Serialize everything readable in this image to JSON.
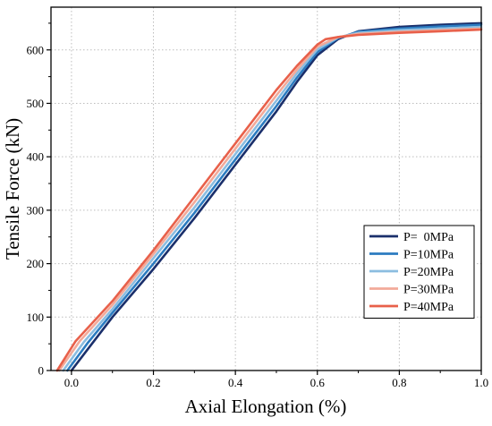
{
  "chart_data": {
    "type": "line",
    "title": "",
    "xlabel": "Axial Elongation (%)",
    "ylabel": "Tensile Force (kN)",
    "xlim": [
      -0.05,
      1.0
    ],
    "ylim": [
      0,
      680
    ],
    "x_ticks": [
      0.0,
      0.2,
      0.4,
      0.6,
      0.8,
      1.0
    ],
    "x_tick_labels": [
      "0.0",
      "0.2",
      "0.4",
      "0.6",
      "0.8",
      "1.0"
    ],
    "y_ticks": [
      0,
      100,
      200,
      300,
      400,
      500,
      600
    ],
    "y_tick_labels": [
      "0",
      "100",
      "200",
      "300",
      "400",
      "500",
      "600"
    ],
    "grid": true,
    "legend_position": "right",
    "series": [
      {
        "name": "P=  0MPa",
        "color": "#1a2f6b",
        "x": [
          0.0,
          0.05,
          0.1,
          0.2,
          0.3,
          0.4,
          0.5,
          0.55,
          0.6,
          0.65,
          0.7,
          0.8,
          0.9,
          1.0
        ],
        "y": [
          0,
          50,
          100,
          190,
          285,
          385,
          485,
          540,
          590,
          620,
          635,
          643,
          647,
          650
        ]
      },
      {
        "name": "P=10MPa",
        "color": "#2b7bc0",
        "x": [
          -0.01,
          0.04,
          0.1,
          0.2,
          0.3,
          0.4,
          0.5,
          0.55,
          0.6,
          0.65,
          0.7,
          0.8,
          0.9,
          1.0
        ],
        "y": [
          0,
          52,
          108,
          200,
          295,
          395,
          495,
          548,
          596,
          622,
          634,
          640,
          644,
          647
        ]
      },
      {
        "name": "P=20MPa",
        "color": "#8bbde0",
        "x": [
          -0.02,
          0.03,
          0.1,
          0.2,
          0.3,
          0.4,
          0.5,
          0.55,
          0.6,
          0.65,
          0.7,
          0.8,
          0.9,
          1.0
        ],
        "y": [
          0,
          53,
          115,
          210,
          305,
          405,
          505,
          556,
          601,
          623,
          632,
          637,
          640,
          643
        ]
      },
      {
        "name": "P=30MPa",
        "color": "#f2aa9a",
        "x": [
          -0.03,
          0.02,
          0.1,
          0.2,
          0.3,
          0.4,
          0.5,
          0.55,
          0.6,
          0.65,
          0.7,
          0.8,
          0.9,
          1.0
        ],
        "y": [
          0,
          55,
          123,
          218,
          315,
          415,
          515,
          563,
          606,
          624,
          630,
          634,
          637,
          640
        ]
      },
      {
        "name": "P=40MPa",
        "color": "#e8604a",
        "x": [
          -0.035,
          0.01,
          0.1,
          0.2,
          0.3,
          0.4,
          0.5,
          0.55,
          0.6,
          0.62,
          0.65,
          0.7,
          0.8,
          0.9,
          1.0
        ],
        "y": [
          0,
          55,
          130,
          225,
          325,
          425,
          525,
          570,
          610,
          620,
          624,
          628,
          632,
          635,
          638
        ]
      }
    ]
  }
}
